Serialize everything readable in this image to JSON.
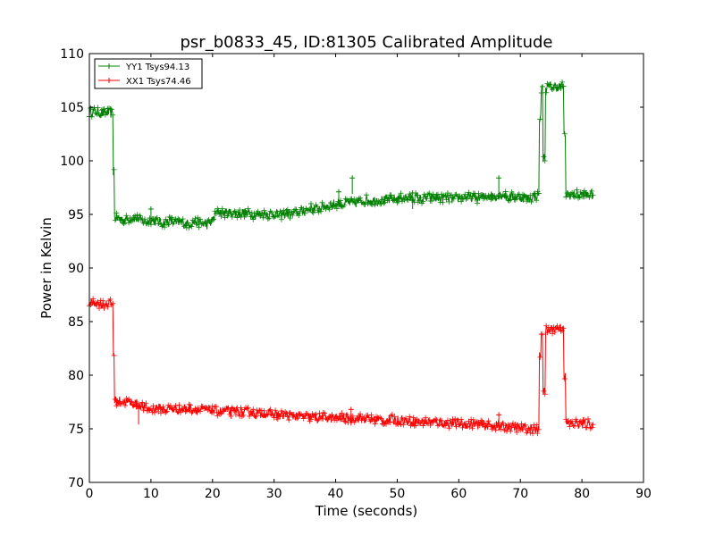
{
  "chart_data": {
    "type": "line",
    "title": "psr_b0833_45, ID:81305 Calibrated Amplitude",
    "xlabel": "Time (seconds)",
    "ylabel": "Power in Kelvin",
    "xlim": [
      0,
      90
    ],
    "ylim": [
      70,
      110
    ],
    "xticks": [
      0,
      10,
      20,
      30,
      40,
      50,
      60,
      70,
      80,
      90
    ],
    "yticks": [
      70,
      75,
      80,
      85,
      90,
      95,
      100,
      105,
      110
    ],
    "grid": false,
    "legend_position": "top-left",
    "series": [
      {
        "name": "YY1 Tsys94.13",
        "color": "#008000",
        "marker": "plus",
        "x": [
          0,
          1,
          2,
          3,
          3.8,
          4.0,
          4.2,
          5,
          6,
          7,
          8,
          9,
          10,
          11,
          12,
          13,
          14,
          15,
          16,
          17,
          18,
          19,
          19.8,
          20.5,
          21,
          22,
          23,
          24,
          25,
          26,
          27,
          28,
          29,
          30,
          31,
          32,
          33,
          34,
          35,
          36,
          37,
          38,
          39,
          40,
          41,
          42,
          43,
          44,
          45,
          46,
          47,
          48,
          49,
          50,
          51,
          52,
          53,
          54,
          55,
          56,
          57,
          58,
          59,
          60,
          61,
          62,
          63,
          64,
          65,
          66,
          67,
          68,
          69,
          70,
          71,
          72,
          73,
          73.3,
          73.6,
          74,
          74.3,
          75,
          76,
          77,
          77.3,
          77.6,
          78,
          79,
          80,
          81,
          81.8
        ],
        "y": [
          104.5,
          104.6,
          104.4,
          104.5,
          104.4,
          99.0,
          94.7,
          94.6,
          94.5,
          94.7,
          94.6,
          94.3,
          94.5,
          94.3,
          94.2,
          94.4,
          94.2,
          94.3,
          94.1,
          94.3,
          94.2,
          94.0,
          94.3,
          95.0,
          95.3,
          95.1,
          95.2,
          95.0,
          95.2,
          95.1,
          94.9,
          95.1,
          95.0,
          95.1,
          94.9,
          95.1,
          95.0,
          95.2,
          95.4,
          95.6,
          95.5,
          95.7,
          95.9,
          96.0,
          95.9,
          96.1,
          96.0,
          96.2,
          96.4,
          96.3,
          96.4,
          96.3,
          96.4,
          96.5,
          96.6,
          96.5,
          96.6,
          96.4,
          96.6,
          96.5,
          96.5,
          96.6,
          96.4,
          96.5,
          96.7,
          96.6,
          96.5,
          96.6,
          96.8,
          96.7,
          96.9,
          96.6,
          96.7,
          96.6,
          96.5,
          96.6,
          96.8,
          104.0,
          106.7,
          100.3,
          106.8,
          106.9,
          106.9,
          107.0,
          102.2,
          96.9,
          96.8,
          96.9,
          96.8,
          96.9,
          96.8
        ],
        "spikes": [
          {
            "x": 10,
            "y": 95.5
          },
          {
            "x": 40.5,
            "y": 97.1
          },
          {
            "x": 42.7,
            "y": 98.4
          },
          {
            "x": 52.5,
            "y": 97.0
          },
          {
            "x": 66.5,
            "y": 98.4
          }
        ]
      },
      {
        "name": "XX1 Tsys74.46",
        "color": "#ff0000",
        "marker": "plus",
        "x": [
          0,
          1,
          2,
          3,
          3.8,
          4.0,
          4.2,
          5,
          6,
          7,
          8,
          9,
          10,
          11,
          12,
          13,
          14,
          15,
          16,
          17,
          18,
          19,
          20,
          21,
          22,
          23,
          24,
          25,
          26,
          27,
          28,
          29,
          30,
          31,
          32,
          33,
          34,
          35,
          36,
          37,
          38,
          39,
          40,
          41,
          42,
          43,
          44,
          45,
          46,
          47,
          48,
          49,
          50,
          51,
          52,
          53,
          54,
          55,
          56,
          57,
          58,
          59,
          60,
          61,
          62,
          63,
          64,
          65,
          66,
          67,
          68,
          69,
          70,
          71,
          72,
          73,
          73.3,
          73.6,
          74,
          74.3,
          75,
          76,
          77,
          77.3,
          77.6,
          78,
          79,
          80,
          81,
          81.8
        ],
        "y": [
          86.7,
          86.8,
          86.6,
          86.7,
          86.6,
          82.0,
          77.6,
          77.6,
          77.5,
          77.4,
          77.3,
          77.0,
          76.8,
          77.0,
          76.8,
          76.9,
          76.8,
          76.8,
          76.9,
          76.8,
          76.7,
          76.8,
          76.7,
          76.6,
          76.7,
          76.6,
          76.7,
          76.5,
          76.6,
          76.4,
          76.5,
          76.4,
          76.4,
          76.3,
          76.3,
          76.2,
          76.2,
          76.1,
          76.1,
          76.0,
          76.1,
          76.0,
          76.0,
          76.1,
          76.0,
          76.0,
          76.0,
          75.9,
          75.9,
          75.8,
          75.8,
          75.9,
          75.8,
          75.8,
          75.7,
          75.7,
          75.6,
          75.7,
          75.6,
          75.6,
          75.5,
          75.5,
          75.5,
          75.4,
          75.5,
          75.4,
          75.3,
          75.3,
          75.3,
          75.2,
          75.2,
          75.1,
          75.1,
          75.0,
          75.0,
          74.9,
          81.8,
          84.1,
          78.4,
          84.2,
          84.3,
          84.4,
          84.5,
          80.0,
          75.5,
          75.4,
          75.5,
          75.4,
          75.5,
          75.4
        ],
        "spikes": [
          {
            "x": 8,
            "y": 76.9
          },
          {
            "x": 42.5,
            "y": 76.8
          },
          {
            "x": 66.5,
            "y": 76.3
          }
        ]
      }
    ]
  }
}
